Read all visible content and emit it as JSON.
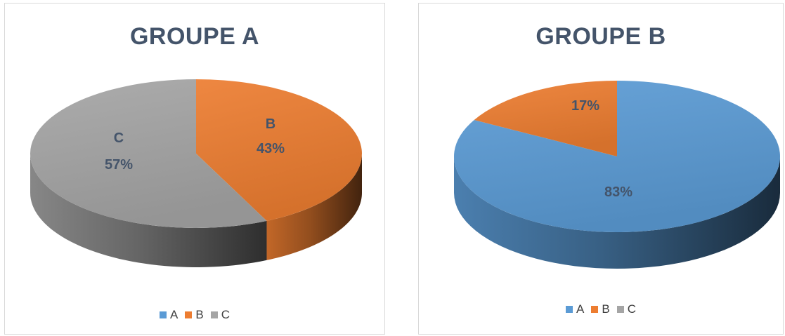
{
  "chart_data": [
    {
      "type": "pie",
      "title": "GROUPE A",
      "categories": [
        "A",
        "B",
        "C"
      ],
      "values": [
        0,
        43,
        57
      ],
      "value_labels": [
        "",
        "43%",
        "57%"
      ],
      "slice_labels": [
        "",
        "B",
        "C"
      ],
      "colors": [
        "#5b9bd5",
        "#ed7d31",
        "#a5a5a5"
      ],
      "legend_position": "bottom",
      "style": "3d"
    },
    {
      "type": "pie",
      "title": "GROUPE B",
      "categories": [
        "A",
        "B",
        "C"
      ],
      "values": [
        83,
        17,
        0
      ],
      "value_labels": [
        "83%",
        "17%",
        ""
      ],
      "slice_labels": [
        "",
        "",
        ""
      ],
      "colors": [
        "#5b9bd5",
        "#ed7d31",
        "#a5a5a5"
      ],
      "legend_position": "bottom",
      "style": "3d"
    }
  ]
}
